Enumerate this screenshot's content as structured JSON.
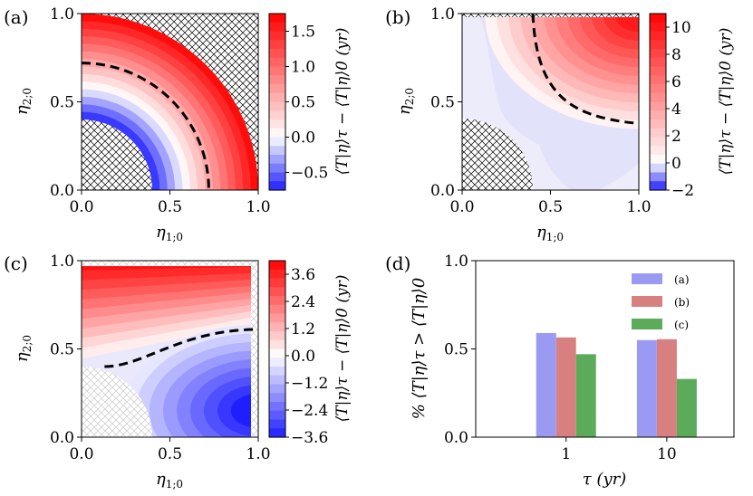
{
  "chart_data": [
    {
      "type": "heatmap",
      "panel_label": "(a)",
      "xlabel": "η1;0",
      "ylabel": "η2;0",
      "xlim": [
        0,
        1
      ],
      "ylim": [
        0,
        1
      ],
      "x_ticks": [
        "0.0",
        "0.5",
        "1.0"
      ],
      "y_ticks": [
        "0.0",
        "0.5",
        "1.0"
      ],
      "colorbar_label": "⟨T|η⟩τ − ⟨T|η⟩0 (yr)",
      "colorbar_range": [
        -0.75,
        1.75
      ],
      "colorbar_ticks": [
        "1.5",
        "1.0",
        "0.5",
        "0.0",
        "−0.5"
      ],
      "colorbar_tick_values": [
        1.5,
        1.0,
        0.5,
        0.0,
        -0.5
      ],
      "zero_contour": "dashed quarter-circle, radius ≈ 0.72",
      "hatched_region": "radius < 0.4 and radius > 1.0"
    },
    {
      "type": "heatmap",
      "panel_label": "(b)",
      "xlabel": "η1;0",
      "ylabel": "η2;0",
      "xlim": [
        0,
        1
      ],
      "ylim": [
        0,
        1
      ],
      "x_ticks": [
        "0.0",
        "0.5",
        "1.0"
      ],
      "y_ticks": [
        "0.0",
        "0.5",
        "1.0"
      ],
      "colorbar_label": "⟨T|η⟩τ − ⟨T|η⟩0 (yr)",
      "colorbar_range": [
        -2,
        11
      ],
      "colorbar_ticks": [
        "10",
        "8",
        "6",
        "4",
        "2",
        "0",
        "−2"
      ],
      "colorbar_tick_values": [
        10,
        8,
        6,
        4,
        2,
        0,
        -2
      ],
      "zero_contour": "dashed curve from (0.4, 1.0) to (0.97, 0.38)",
      "hatched_region": "radius < 0.4 and top edge"
    },
    {
      "type": "heatmap",
      "panel_label": "(c)",
      "xlabel": "η1;0",
      "ylabel": "η2;0",
      "xlim": [
        0,
        1
      ],
      "ylim": [
        0,
        1
      ],
      "x_ticks": [
        "0.0",
        "0.5",
        "1.0"
      ],
      "y_ticks": [
        "0.0",
        "0.5",
        "1.0"
      ],
      "colorbar_label": "⟨T|η⟩τ − ⟨T|η⟩0 (yr)",
      "colorbar_range": [
        -3.6,
        4.2
      ],
      "colorbar_ticks": [
        "3.6",
        "2.4",
        "1.2",
        "0.0",
        "−1.2",
        "−2.4",
        "−3.6"
      ],
      "colorbar_tick_values": [
        3.6,
        2.4,
        1.2,
        0.0,
        -1.2,
        -2.4,
        -3.6
      ],
      "zero_contour": "dashed curve from (0.15, 0.4) to (0.97, 0.61)",
      "hatched_region": "radius < 0.4 (light grey)"
    },
    {
      "type": "bar",
      "panel_label": "(d)",
      "xlabel": "τ (yr)",
      "ylabel": "% ⟨T|η⟩τ > ⟨T|η⟩0",
      "categories": [
        "1",
        "10"
      ],
      "ylim": [
        0,
        1
      ],
      "y_ticks": [
        "0.0",
        "0.5",
        "1.0"
      ],
      "legend_position": "top-right",
      "series": [
        {
          "name": "(a)",
          "color": "#9b9af2",
          "values": [
            0.59,
            0.55
          ]
        },
        {
          "name": "(b)",
          "color": "#d88080",
          "values": [
            0.565,
            0.555
          ]
        },
        {
          "name": "(c)",
          "color": "#5bab5b",
          "values": [
            0.47,
            0.33
          ]
        }
      ]
    }
  ]
}
